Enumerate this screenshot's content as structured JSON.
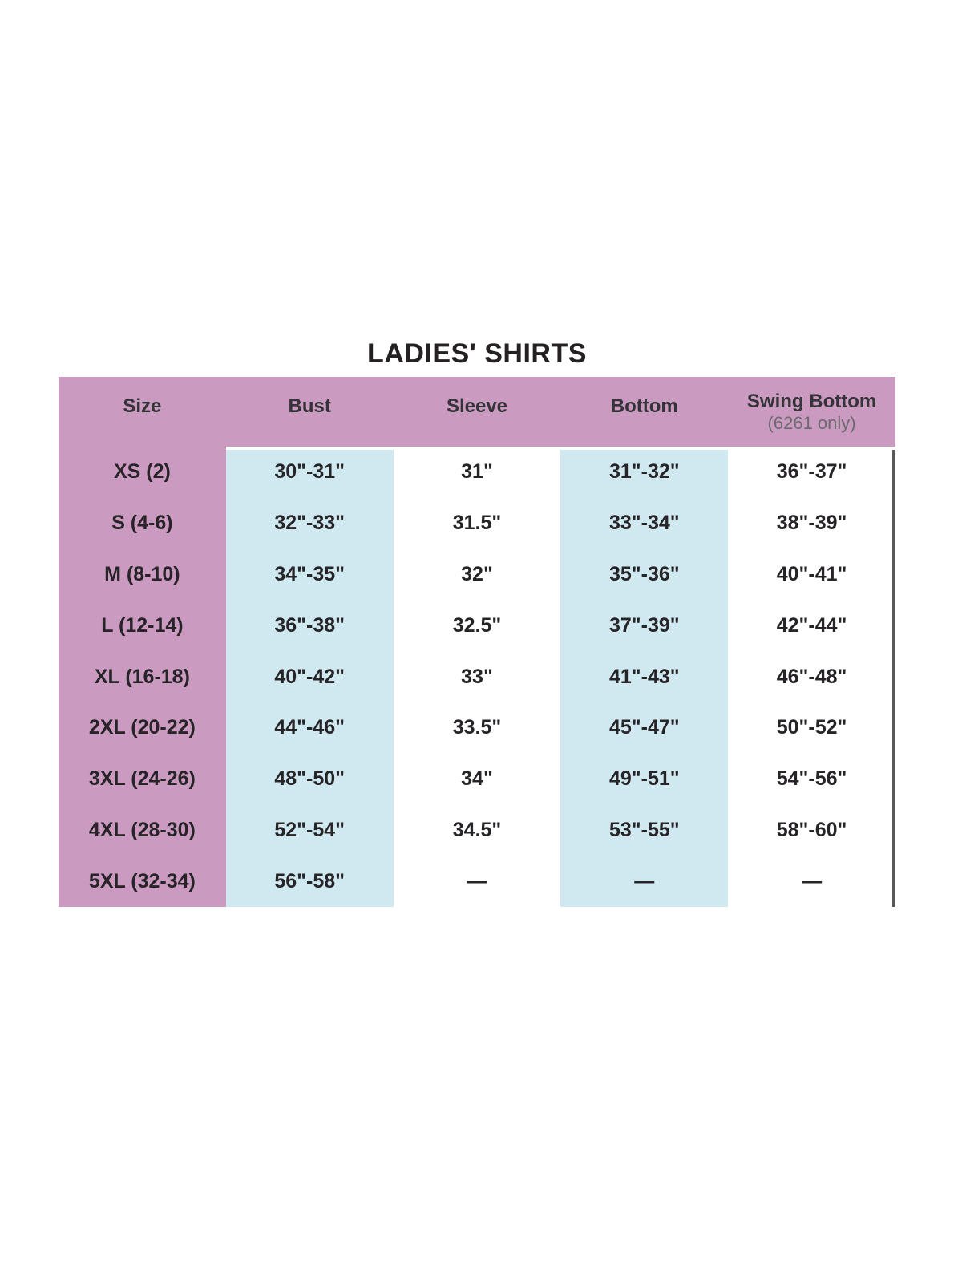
{
  "colors": {
    "header_band": "#cb9ac0",
    "size_column": "#cb9ac0",
    "stripe_blue": "#d0e9f0",
    "right_border": "#57585a",
    "title_text": "#252122",
    "header_text": "#343337",
    "subheader_text": "#6a6b6e",
    "body_text": "#272428"
  },
  "chart_data": {
    "type": "table",
    "title": "LADIES' SHIRTS",
    "columns": [
      "Size",
      "Bust",
      "Sleeve",
      "Bottom",
      "Swing Bottom"
    ],
    "swing_bottom_note": "(6261 only)",
    "rows": [
      [
        "XS (2)",
        "30\"-31\"",
        "31\"",
        "31\"-32\"",
        "36\"-37\""
      ],
      [
        "S (4-6)",
        "32\"-33\"",
        "31.5\"",
        "33\"-34\"",
        "38\"-39\""
      ],
      [
        "M (8-10)",
        "34\"-35\"",
        "32\"",
        "35\"-36\"",
        "40\"-41\""
      ],
      [
        "L (12-14)",
        "36\"-38\"",
        "32.5\"",
        "37\"-39\"",
        "42\"-44\""
      ],
      [
        "XL (16-18)",
        "40\"-42\"",
        "33\"",
        "41\"-43\"",
        "46\"-48\""
      ],
      [
        "2XL (20-22)",
        "44\"-46\"",
        "33.5\"",
        "45\"-47\"",
        "50\"-52\""
      ],
      [
        "3XL (24-26)",
        "48\"-50\"",
        "34\"",
        "49\"-51\"",
        "54\"-56\""
      ],
      [
        "4XL (28-30)",
        "52\"-54\"",
        "34.5\"",
        "53\"-55\"",
        "58\"-60\""
      ],
      [
        "5XL (32-34)",
        "56\"-58\"",
        "—",
        "—",
        "—"
      ]
    ]
  }
}
